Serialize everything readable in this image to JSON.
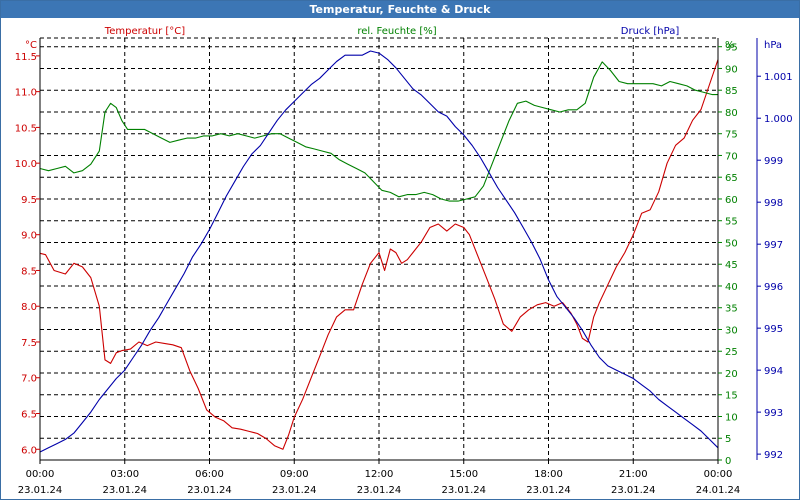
{
  "window": {
    "title": "Temperatur, Feuchte & Druck"
  },
  "colors": {
    "temperature": "#cc0000",
    "humidity": "#008000",
    "pressure": "#0000aa",
    "grid": "#000000",
    "title_bar": "#3c76b5"
  },
  "chart_data": {
    "type": "line",
    "grid": true,
    "series_titles": [
      "Temperatur [°C]",
      "rel. Feuchte [%]",
      "Druck [hPa]"
    ],
    "y_left": {
      "unit": "°C",
      "min": 5.85,
      "max": 11.75,
      "ticks": [
        "6.0",
        "6.5",
        "7.0",
        "7.5",
        "8.0",
        "8.5",
        "9.0",
        "9.5",
        "10.0",
        "10.5",
        "11.0",
        "11.5"
      ]
    },
    "y_right_humidity": {
      "unit": "%",
      "min": 0,
      "max": 97,
      "ticks": [
        "0",
        "5",
        "10",
        "15",
        "20",
        "25",
        "30",
        "35",
        "40",
        "45",
        "50",
        "55",
        "60",
        "65",
        "70",
        "75",
        "80",
        "85",
        "90",
        "95"
      ],
      "top_label": "%"
    },
    "y_right_pressure": {
      "unit": "hPa",
      "min": 991.86,
      "max": 1001.91,
      "ticks": [
        "992",
        "993",
        "994",
        "995",
        "996",
        "997",
        "998",
        "999",
        "1.000",
        "1.001"
      ],
      "top_label": "hPa"
    },
    "x_ticks": [
      {
        "time": "00:00",
        "date": "23.01.24"
      },
      {
        "time": "03:00",
        "date": "23.01.24"
      },
      {
        "time": "06:00",
        "date": "23.01.24"
      },
      {
        "time": "09:00",
        "date": "23.01.24"
      },
      {
        "time": "12:00",
        "date": "23.01.24"
      },
      {
        "time": "15:00",
        "date": "23.01.24"
      },
      {
        "time": "18:00",
        "date": "23.01.24"
      },
      {
        "time": "21:00",
        "date": "23.01.24"
      },
      {
        "time": "00:00",
        "date": "24.01.24"
      }
    ],
    "x_hours": [
      0,
      24
    ],
    "series": [
      {
        "name": "Temperatur [°C]",
        "hours": [
          0,
          0.2,
          0.5,
          0.9,
          1.2,
          1.5,
          1.8,
          2.1,
          2.3,
          2.5,
          2.7,
          2.9,
          3.2,
          3.5,
          3.8,
          4.1,
          4.4,
          4.7,
          5.0,
          5.3,
          5.6,
          5.9,
          6.2,
          6.5,
          6.8,
          7.1,
          7.4,
          7.7,
          8.0,
          8.3,
          8.6,
          8.8,
          9.0,
          9.3,
          9.6,
          9.9,
          10.2,
          10.5,
          10.8,
          11.1,
          11.4,
          11.7,
          12.0,
          12.2,
          12.4,
          12.6,
          12.8,
          13.0,
          13.2,
          13.5,
          13.8,
          14.1,
          14.4,
          14.7,
          15.0,
          15.2,
          15.5,
          15.8,
          16.1,
          16.4,
          16.7,
          17.0,
          17.3,
          17.6,
          17.9,
          18.2,
          18.5,
          18.8,
          19.0,
          19.2,
          19.4,
          19.6,
          19.8,
          20.1,
          20.4,
          20.7,
          21.0,
          21.3,
          21.6,
          21.9,
          22.2,
          22.5,
          22.8,
          23.1,
          23.4,
          23.7,
          24.0
        ],
        "values": [
          8.74,
          8.72,
          8.5,
          8.45,
          8.6,
          8.55,
          8.4,
          8.0,
          7.25,
          7.2,
          7.35,
          7.38,
          7.4,
          7.5,
          7.45,
          7.5,
          7.48,
          7.46,
          7.42,
          7.1,
          6.85,
          6.55,
          6.45,
          6.4,
          6.3,
          6.28,
          6.25,
          6.22,
          6.15,
          6.05,
          6.0,
          6.2,
          6.45,
          6.7,
          7.0,
          7.3,
          7.6,
          7.85,
          7.95,
          7.95,
          8.3,
          8.6,
          8.75,
          8.5,
          8.8,
          8.75,
          8.6,
          8.65,
          8.75,
          8.9,
          9.1,
          9.15,
          9.05,
          9.15,
          9.1,
          9.0,
          8.7,
          8.4,
          8.1,
          7.75,
          7.65,
          7.85,
          7.95,
          8.02,
          8.05,
          8.0,
          8.05,
          7.9,
          7.75,
          7.55,
          7.5,
          7.85,
          8.05,
          8.3,
          8.55,
          8.75,
          9.0,
          9.3,
          9.35,
          9.6,
          10.0,
          10.25,
          10.35,
          10.6,
          10.75,
          11.1,
          11.45
        ]
      },
      {
        "name": "rel. Feuchte [%]",
        "hours": [
          0,
          0.3,
          0.6,
          0.9,
          1.2,
          1.5,
          1.8,
          2.1,
          2.3,
          2.5,
          2.7,
          2.9,
          3.1,
          3.4,
          3.7,
          4.0,
          4.3,
          4.6,
          4.9,
          5.2,
          5.5,
          5.8,
          6.1,
          6.4,
          6.7,
          7.0,
          7.3,
          7.6,
          7.9,
          8.2,
          8.5,
          8.8,
          9.1,
          9.4,
          9.7,
          10.0,
          10.3,
          10.6,
          10.9,
          11.2,
          11.5,
          11.8,
          12.1,
          12.4,
          12.7,
          13.0,
          13.3,
          13.6,
          13.9,
          14.2,
          14.5,
          14.8,
          15.1,
          15.4,
          15.7,
          16.0,
          16.3,
          16.6,
          16.9,
          17.2,
          17.5,
          17.8,
          18.1,
          18.4,
          18.7,
          19.0,
          19.3,
          19.6,
          19.9,
          20.2,
          20.5,
          20.8,
          21.1,
          21.4,
          21.7,
          22.0,
          22.3,
          22.6,
          22.9,
          23.2,
          23.5,
          23.8,
          24.0
        ],
        "values": [
          67,
          66.5,
          67,
          67.5,
          66,
          66.5,
          68,
          71,
          80,
          82,
          81,
          78,
          76,
          76,
          76,
          75,
          74,
          73,
          73.5,
          74,
          74,
          74.5,
          74.5,
          75,
          74.5,
          75,
          74.5,
          74,
          74.5,
          75,
          75,
          74,
          73,
          72,
          71.5,
          71,
          70.5,
          69,
          68,
          67,
          66,
          64,
          62,
          61.5,
          60.5,
          61,
          61,
          61.5,
          61,
          60,
          59.5,
          59.5,
          60,
          60.5,
          63,
          68,
          73,
          78,
          82,
          82.5,
          81.5,
          81,
          80.5,
          80,
          80.5,
          80.5,
          82,
          88,
          91.5,
          89.5,
          87,
          86.5,
          86.5,
          86.5,
          86.5,
          86,
          87,
          86.5,
          86,
          85,
          84.5,
          84,
          84
        ]
      },
      {
        "name": "Druck [hPa]",
        "hours": [
          0,
          0.3,
          0.6,
          0.9,
          1.2,
          1.5,
          1.8,
          2.1,
          2.4,
          2.7,
          3.0,
          3.3,
          3.6,
          3.9,
          4.2,
          4.5,
          4.8,
          5.1,
          5.4,
          5.7,
          6.0,
          6.3,
          6.6,
          6.9,
          7.2,
          7.5,
          7.8,
          8.1,
          8.4,
          8.7,
          9.0,
          9.3,
          9.6,
          9.9,
          10.2,
          10.5,
          10.8,
          11.1,
          11.4,
          11.7,
          12.0,
          12.3,
          12.6,
          12.9,
          13.2,
          13.5,
          13.8,
          14.1,
          14.4,
          14.7,
          15.0,
          15.3,
          15.6,
          15.9,
          16.2,
          16.5,
          16.8,
          17.1,
          17.4,
          17.7,
          18.0,
          18.3,
          18.6,
          18.9,
          19.2,
          19.5,
          19.8,
          20.1,
          20.4,
          20.7,
          21.0,
          21.3,
          21.6,
          21.9,
          22.2,
          22.5,
          22.8,
          23.1,
          23.4,
          23.7,
          24.0
        ],
        "values": [
          992.05,
          992.15,
          992.25,
          992.35,
          992.5,
          992.75,
          993.0,
          993.3,
          993.55,
          993.8,
          994.0,
          994.3,
          994.6,
          994.95,
          995.25,
          995.6,
          995.95,
          996.3,
          996.7,
          997.0,
          997.35,
          997.75,
          998.15,
          998.5,
          998.85,
          999.15,
          999.35,
          999.65,
          999.95,
          1000.2,
          1000.4,
          1000.6,
          1000.8,
          1000.95,
          1001.15,
          1001.35,
          1001.5,
          1001.5,
          1001.5,
          1001.6,
          1001.55,
          1001.4,
          1001.2,
          1000.95,
          1000.7,
          1000.55,
          1000.35,
          1000.15,
          1000.05,
          999.8,
          999.6,
          999.35,
          999.05,
          998.7,
          998.35,
          998.05,
          997.75,
          997.4,
          997.05,
          996.65,
          996.15,
          995.75,
          995.5,
          995.25,
          994.95,
          994.6,
          994.3,
          994.1,
          994.0,
          993.9,
          993.8,
          993.65,
          993.5,
          993.3,
          993.15,
          993.0,
          992.85,
          992.7,
          992.55,
          992.35,
          992.15
        ]
      }
    ]
  }
}
